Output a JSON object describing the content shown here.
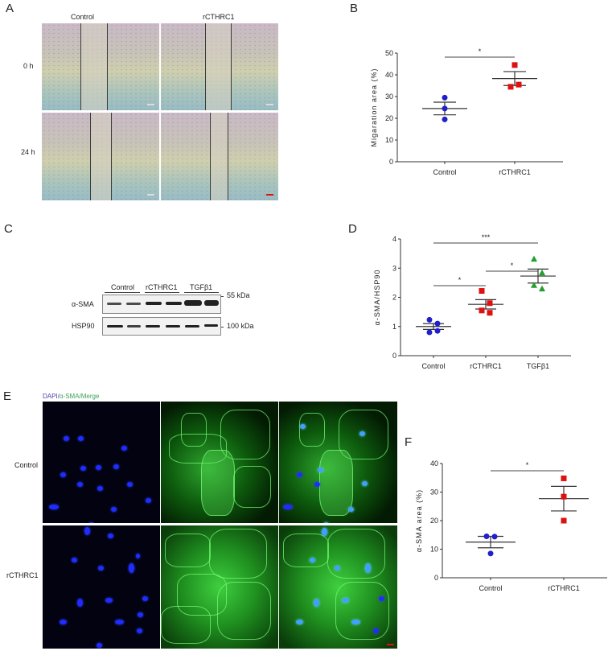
{
  "panels": {
    "A": {
      "label": "A",
      "columns": [
        "Control",
        "rCTHRC1"
      ],
      "rows": [
        "0 h",
        "24 h"
      ]
    },
    "B": {
      "label": "B"
    },
    "C": {
      "label": "C",
      "groups": [
        "Control",
        "rCTHRC1",
        "TGFβ1"
      ],
      "rows": [
        "α-SMA",
        "HSP90"
      ],
      "markers": [
        "55 kDa",
        "100 kDa"
      ]
    },
    "D": {
      "label": "D"
    },
    "E": {
      "label": "E",
      "channel_title_dapi": "DAPI/",
      "channel_title_sma": "α-SMA/Merge",
      "rows": [
        "Control",
        "rCTHRC1"
      ]
    },
    "F": {
      "label": "F"
    }
  },
  "chart_data": [
    {
      "id": "B",
      "type": "scatter",
      "title": "",
      "xlabel": "",
      "ylabel": "Migaration area (%)",
      "categories": [
        "Control",
        "rCTHRC1"
      ],
      "ylim": [
        0,
        50
      ],
      "yticks": [
        0,
        10,
        20,
        30,
        40,
        50
      ],
      "series": [
        {
          "name": "Control",
          "color": "#1f1fcc",
          "marker": "circle",
          "values": [
            29.5,
            24.5,
            19.5
          ],
          "mean": 24.5,
          "sem": 2.9
        },
        {
          "name": "rCTHRC1",
          "color": "#dd1111",
          "marker": "square",
          "values": [
            44.5,
            35.5,
            34.5
          ],
          "mean": 38.3,
          "sem": 3.2
        }
      ],
      "significance": [
        {
          "from": "Control",
          "to": "rCTHRC1",
          "label": "*"
        }
      ],
      "grid": false
    },
    {
      "id": "D",
      "type": "scatter",
      "title": "",
      "xlabel": "",
      "ylabel": "α-SMA/HSP90",
      "categories": [
        "Control",
        "rCTHRC1",
        "TGFβ1"
      ],
      "ylim": [
        0,
        4
      ],
      "yticks": [
        0,
        1,
        2,
        3,
        4
      ],
      "series": [
        {
          "name": "Control",
          "color": "#1f1fcc",
          "marker": "circle",
          "values": [
            1.23,
            1.1,
            0.8,
            0.85
          ],
          "mean": 1.0,
          "sem": 0.1
        },
        {
          "name": "rCTHRC1",
          "color": "#dd1111",
          "marker": "square",
          "values": [
            2.22,
            1.8,
            1.55,
            1.47
          ],
          "mean": 1.76,
          "sem": 0.16
        },
        {
          "name": "TGFβ1",
          "color": "#22a02a",
          "marker": "triangle",
          "values": [
            3.32,
            2.85,
            2.42,
            2.3
          ],
          "mean": 2.73,
          "sem": 0.24
        }
      ],
      "significance": [
        {
          "from": "Control",
          "to": "rCTHRC1",
          "label": "*"
        },
        {
          "from": "rCTHRC1",
          "to": "TGFβ1",
          "label": "*"
        },
        {
          "from": "Control",
          "to": "TGFβ1",
          "label": "***"
        }
      ],
      "grid": false
    },
    {
      "id": "F",
      "type": "scatter",
      "title": "",
      "xlabel": "",
      "ylabel": "α-SMA area (%)",
      "categories": [
        "Control",
        "rCTHRC1"
      ],
      "ylim": [
        0,
        40
      ],
      "yticks": [
        0,
        10,
        20,
        30,
        40
      ],
      "series": [
        {
          "name": "Control",
          "color": "#1f1fcc",
          "marker": "circle",
          "values": [
            14.5,
            14.4,
            8.5
          ],
          "mean": 12.5,
          "sem": 2.0
        },
        {
          "name": "rCTHRC1",
          "color": "#dd1111",
          "marker": "square",
          "values": [
            34.8,
            28.4,
            20.0
          ],
          "mean": 27.7,
          "sem": 4.3
        }
      ],
      "significance": [
        {
          "from": "Control",
          "to": "rCTHRC1",
          "label": "*"
        }
      ],
      "grid": false
    }
  ]
}
